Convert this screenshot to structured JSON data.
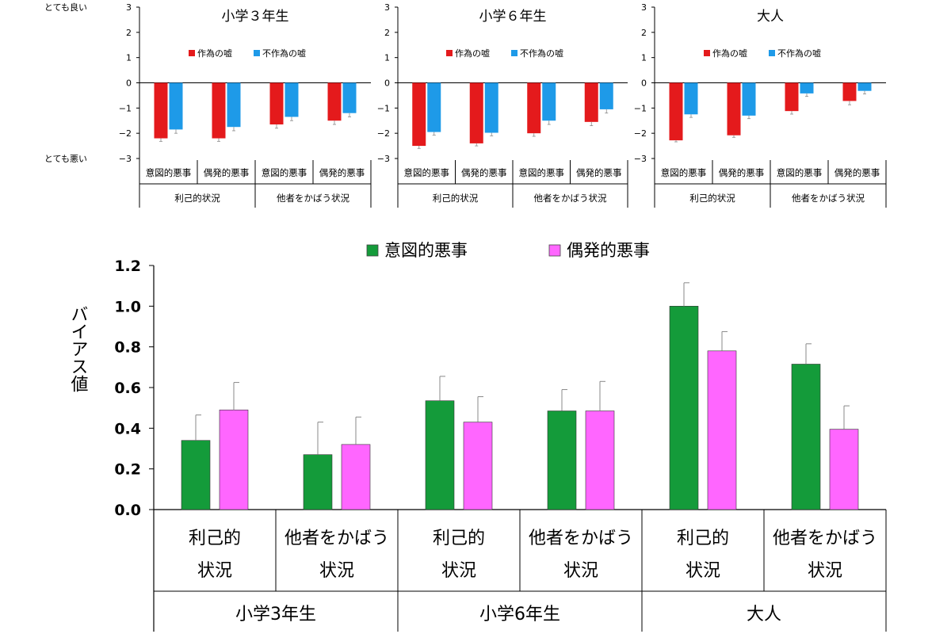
{
  "chart_data": [
    {
      "type": "bar",
      "title": "小学３年生",
      "scale_top_label": "とても良い",
      "scale_bottom_label": "とても悪い",
      "ylim": [
        -3,
        3
      ],
      "yticks": [
        "3",
        "2",
        "1",
        "0",
        "−1",
        "−2",
        "−3"
      ],
      "legend_placement": "top",
      "categories": [
        "意図的悪事",
        "偶発的悪事",
        "意図的悪事",
        "偶発的悪事"
      ],
      "groups": [
        "利己的状況",
        "他者をかばう状況"
      ],
      "series": [
        {
          "name": "作為の嘘",
          "color": "#e41a1c",
          "values": [
            -2.2,
            -2.2,
            -1.65,
            -1.5
          ],
          "errors": [
            0.12,
            0.12,
            0.15,
            0.15
          ]
        },
        {
          "name": "不作為の嘘",
          "color": "#1e9ae8",
          "values": [
            -1.85,
            -1.75,
            -1.35,
            -1.2
          ],
          "errors": [
            0.15,
            0.15,
            0.15,
            0.15
          ]
        }
      ]
    },
    {
      "type": "bar",
      "title": "小学６年生",
      "ylim": [
        -3,
        3
      ],
      "yticks": [
        "3",
        "2",
        "1",
        "0",
        "−1",
        "−2",
        "−3"
      ],
      "legend_placement": "top",
      "categories": [
        "意図的悪事",
        "偶発的悪事",
        "意図的悪事",
        "偶発的悪事"
      ],
      "groups": [
        "利己的状況",
        "他者をかばう状況"
      ],
      "series": [
        {
          "name": "作為の嘘",
          "color": "#e41a1c",
          "values": [
            -2.5,
            -2.4,
            -2.0,
            -1.55
          ],
          "errors": [
            0.1,
            0.1,
            0.12,
            0.15
          ]
        },
        {
          "name": "不作為の嘘",
          "color": "#1e9ae8",
          "values": [
            -1.95,
            -1.98,
            -1.5,
            -1.05
          ],
          "errors": [
            0.12,
            0.12,
            0.15,
            0.15
          ]
        }
      ]
    },
    {
      "type": "bar",
      "title": "大人",
      "ylim": [
        -3,
        3
      ],
      "yticks": [
        "3",
        "2",
        "1",
        "0",
        "−1",
        "−2",
        "−3"
      ],
      "legend_placement": "top",
      "categories": [
        "意図的悪事",
        "偶発的悪事",
        "意図的悪事",
        "偶発的悪事"
      ],
      "groups": [
        "利己的状況",
        "他者をかばう状況"
      ],
      "series": [
        {
          "name": "作為の嘘",
          "color": "#e41a1c",
          "values": [
            -2.28,
            -2.08,
            -1.12,
            -0.72
          ],
          "errors": [
            0.06,
            0.08,
            0.12,
            0.15
          ]
        },
        {
          "name": "不作為の嘘",
          "color": "#1e9ae8",
          "values": [
            -1.25,
            -1.3,
            -0.42,
            -0.32
          ],
          "errors": [
            0.12,
            0.12,
            0.12,
            0.12
          ]
        }
      ]
    },
    {
      "type": "bar",
      "ylabel": "バイアス値",
      "ylim": [
        0,
        1.2
      ],
      "yticks": [
        "0.0",
        "0.2",
        "0.4",
        "0.6",
        "0.8",
        "1.0",
        "1.2"
      ],
      "legend_placement": "top",
      "categories": [
        {
          "line1": "利己的",
          "line2": "状況"
        },
        {
          "line1": "他者をかばう",
          "line2": "状況"
        },
        {
          "line1": "利己的",
          "line2": "状況"
        },
        {
          "line1": "他者をかばう",
          "line2": "状況"
        },
        {
          "line1": "利己的",
          "line2": "状況"
        },
        {
          "line1": "他者をかばう",
          "line2": "状況"
        }
      ],
      "groups": [
        "小学3年生",
        "小学6年生",
        "大人"
      ],
      "series": [
        {
          "name": "意図的悪事",
          "color": "#149b3a",
          "values": [
            0.34,
            0.27,
            0.535,
            0.485,
            1.0,
            0.715
          ],
          "errors": [
            0.125,
            0.16,
            0.12,
            0.105,
            0.115,
            0.1
          ]
        },
        {
          "name": "偶発的悪事",
          "color": "#ff66ff",
          "values": [
            0.49,
            0.32,
            0.43,
            0.485,
            0.78,
            0.395
          ],
          "errors": [
            0.135,
            0.135,
            0.125,
            0.145,
            0.095,
            0.115
          ]
        }
      ]
    }
  ]
}
